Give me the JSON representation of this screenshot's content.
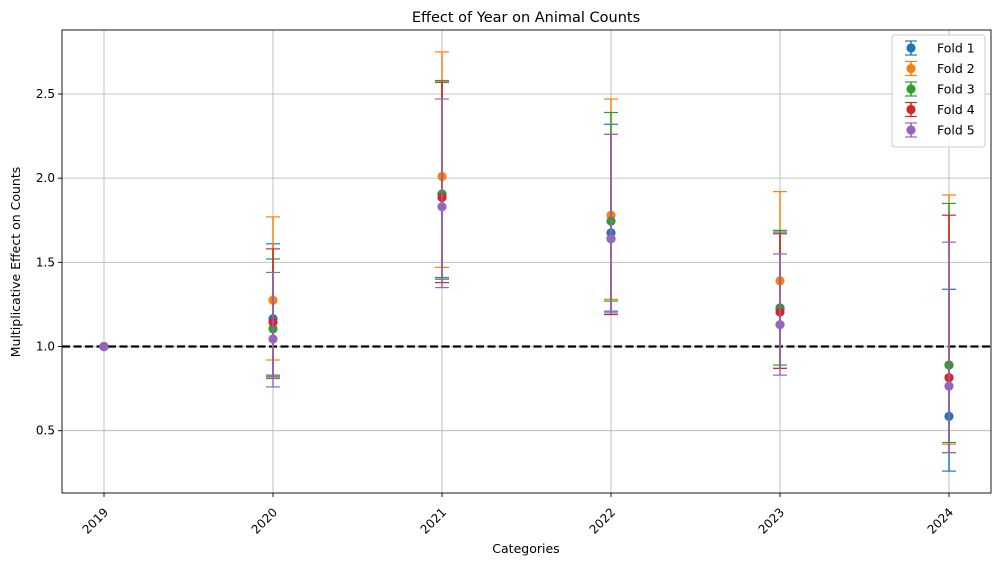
{
  "chart_data": {
    "type": "scatter",
    "title": "Effect of Year on Animal Counts",
    "xlabel": "Categories",
    "ylabel": "Multiplicative Effect on Counts",
    "categories": [
      "2019",
      "2020",
      "2021",
      "2022",
      "2023",
      "2024"
    ],
    "ylim": [
      0.13,
      2.88
    ],
    "yticks": [
      0.5,
      1.0,
      1.5,
      2.0,
      2.5
    ],
    "ytick_labels": [
      "0.5",
      "1.0",
      "1.5",
      "2.0",
      "2.5"
    ],
    "grid": true,
    "legend_position": "top-right",
    "reference_line": {
      "y": 1.0,
      "style": "dashed",
      "color": "#000000"
    },
    "series": [
      {
        "name": "Fold 1",
        "color": "#1f77b4",
        "values": [
          1.0,
          1.165,
          1.905,
          1.675,
          1.225,
          0.585
        ],
        "lower": [
          1.0,
          0.83,
          1.4,
          1.21,
          0.87,
          0.26
        ],
        "upper": [
          1.0,
          1.61,
          2.57,
          2.32,
          1.68,
          1.34
        ]
      },
      {
        "name": "Fold 2",
        "color": "#ff7f0e",
        "values": [
          1.0,
          1.275,
          2.01,
          1.78,
          1.39,
          0.89
        ],
        "lower": [
          1.0,
          0.92,
          1.47,
          1.28,
          0.87,
          0.42
        ],
        "upper": [
          1.0,
          1.77,
          2.75,
          2.47,
          1.92,
          1.9
        ]
      },
      {
        "name": "Fold 3",
        "color": "#2ca02c",
        "values": [
          1.0,
          1.105,
          1.905,
          1.745,
          1.23,
          0.89
        ],
        "lower": [
          1.0,
          0.81,
          1.41,
          1.27,
          0.89,
          0.43
        ],
        "upper": [
          1.0,
          1.52,
          2.58,
          2.39,
          1.69,
          1.85
        ]
      },
      {
        "name": "Fold 4",
        "color": "#d62728",
        "values": [
          1.0,
          1.145,
          1.885,
          1.64,
          1.205,
          0.815
        ],
        "lower": [
          1.0,
          0.82,
          1.38,
          1.19,
          0.87,
          0.37
        ],
        "upper": [
          1.0,
          1.58,
          2.57,
          2.26,
          1.67,
          1.78
        ]
      },
      {
        "name": "Fold 5",
        "color": "#9467bd",
        "values": [
          1.0,
          1.045,
          1.83,
          1.64,
          1.13,
          0.765
        ],
        "lower": [
          1.0,
          0.76,
          1.35,
          1.2,
          0.83,
          0.37
        ],
        "upper": [
          1.0,
          1.44,
          2.47,
          2.26,
          1.55,
          1.62
        ]
      }
    ]
  }
}
